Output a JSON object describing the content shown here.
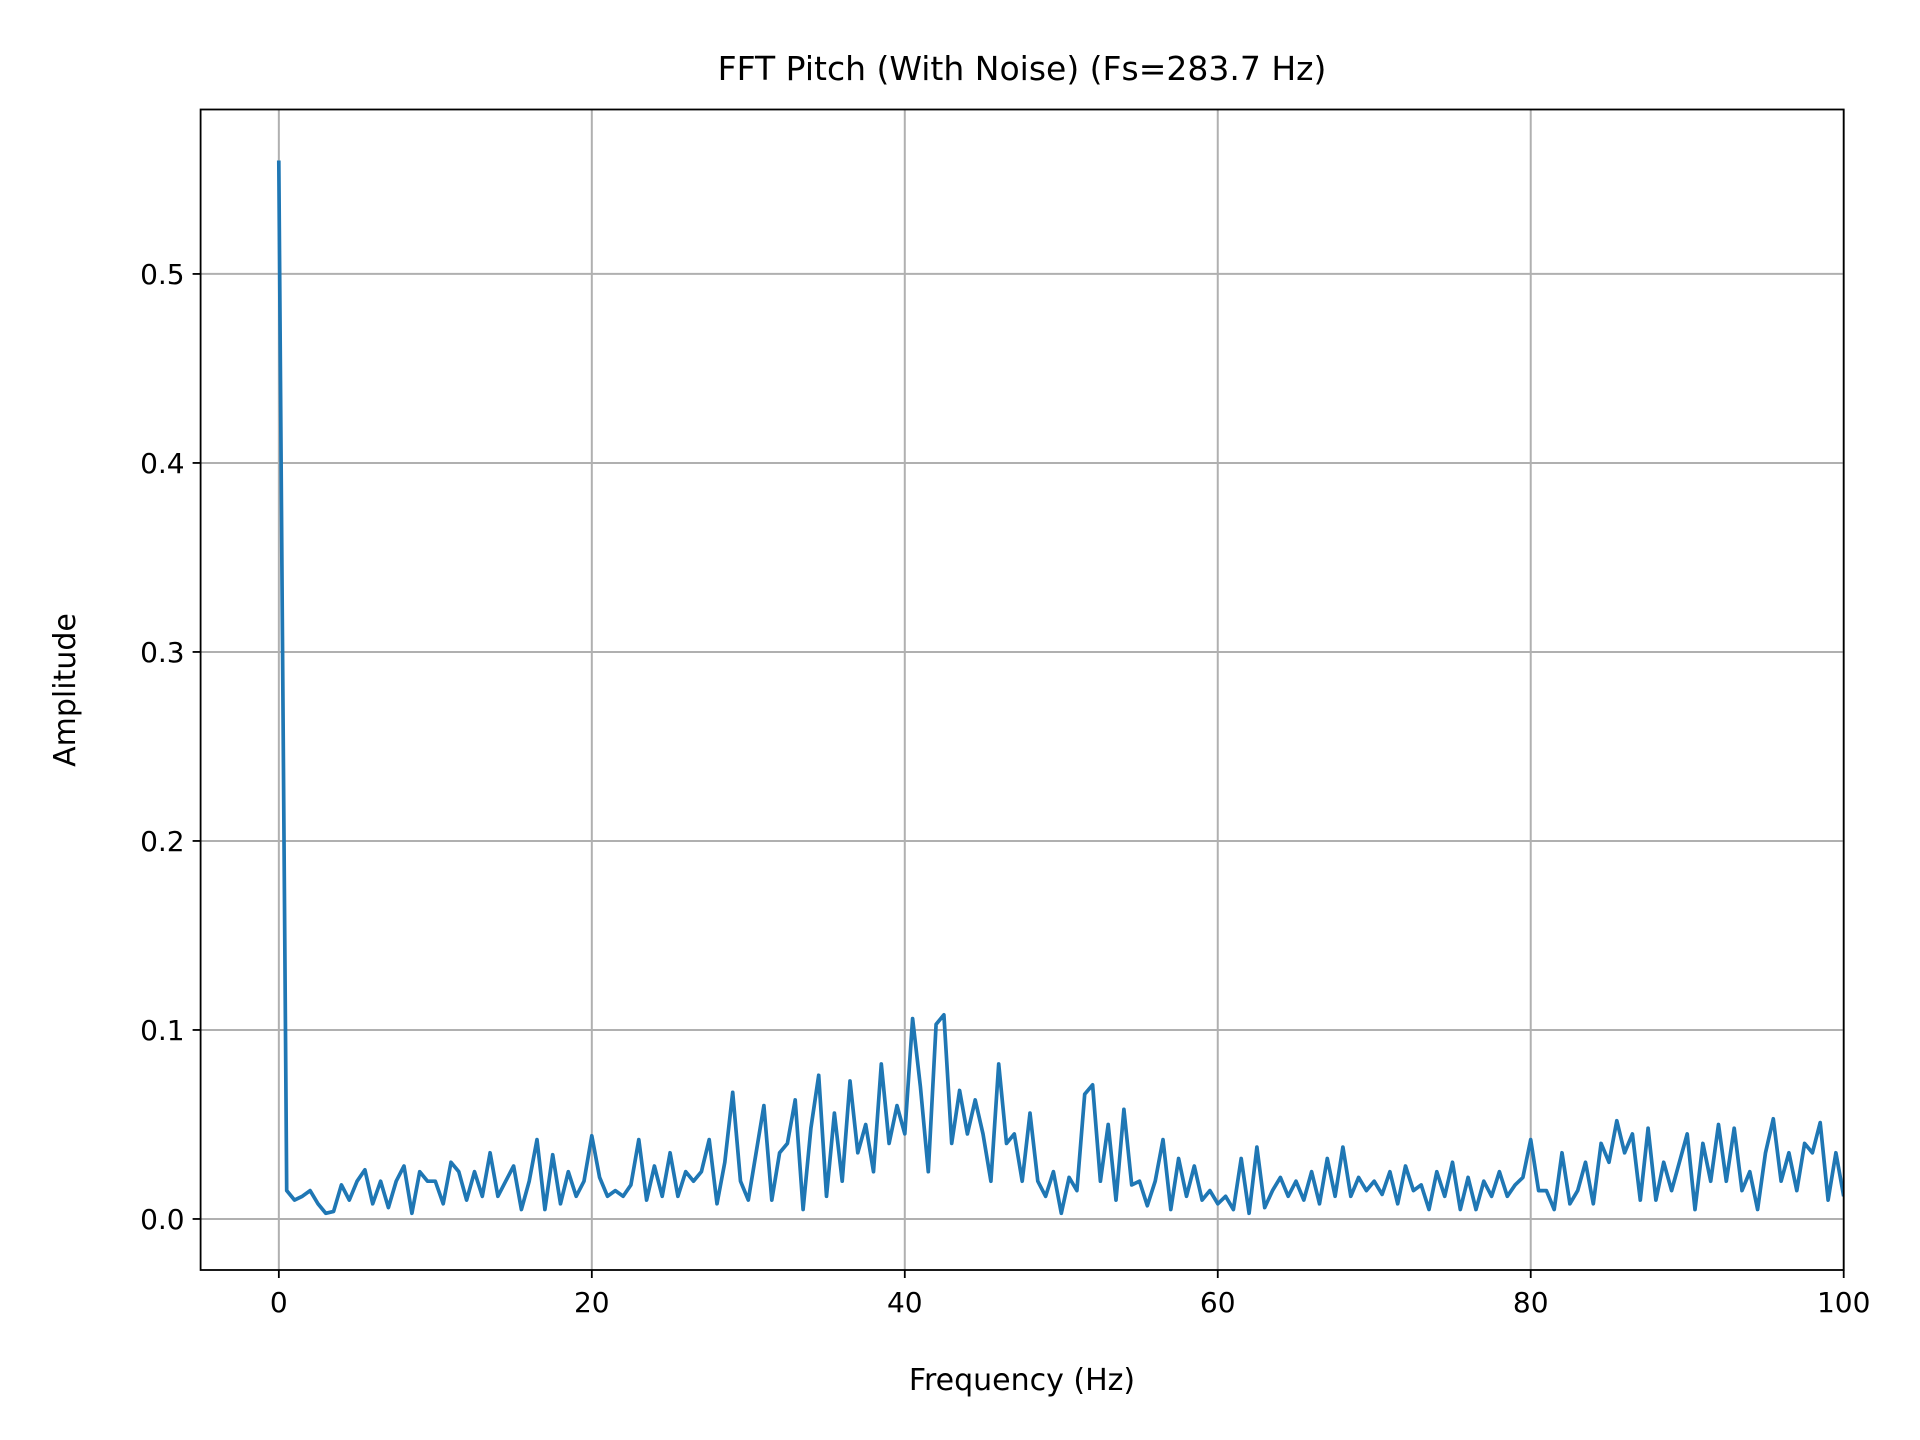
{
  "chart_data": {
    "type": "line",
    "title": "FFT Pitch (With Noise) (Fs=283.7 Hz)",
    "xlabel": "Frequency (Hz)",
    "ylabel": "Amplitude",
    "xlim": [
      -5,
      100
    ],
    "ylim": [
      -0.027,
      0.587
    ],
    "xticks": [
      0,
      20,
      40,
      60,
      80,
      100
    ],
    "xtick_labels": [
      "0",
      "20",
      "40",
      "60",
      "80",
      "100"
    ],
    "yticks": [
      0.0,
      0.1,
      0.2,
      0.3,
      0.4,
      0.5
    ],
    "ytick_labels": [
      "0.0",
      "0.1",
      "0.2",
      "0.3",
      "0.4",
      "0.5"
    ],
    "grid": true,
    "line_color": "#1f77b4",
    "series": [
      {
        "x": [
          0,
          0.5,
          1,
          1.5,
          2,
          2.5,
          3,
          3.5,
          4,
          4.5,
          5,
          5.5,
          6,
          6.5,
          7,
          7.5,
          8,
          8.5,
          9,
          9.5,
          10,
          10.5,
          11,
          11.5,
          12,
          12.5,
          13,
          13.5,
          14,
          14.5,
          15,
          15.5,
          16,
          16.5,
          17,
          17.5,
          18,
          18.5,
          19,
          19.5,
          20,
          20.5,
          21,
          21.5,
          22,
          22.5,
          23,
          23.5,
          24,
          24.5,
          25,
          25.5,
          26,
          26.5,
          27,
          27.5,
          28,
          28.5,
          29,
          29.5,
          30,
          30.5,
          31,
          31.5,
          32,
          32.5,
          33,
          33.5,
          34,
          34.5,
          35,
          35.5,
          36,
          36.5,
          37,
          37.5,
          38,
          38.5,
          39,
          39.5,
          40,
          40.5,
          41,
          41.5,
          42,
          42.5,
          43,
          43.5,
          44,
          44.5,
          45,
          45.5,
          46,
          46.5,
          47,
          47.5,
          48,
          48.5,
          49,
          49.5,
          50,
          50.5,
          51,
          51.5,
          52,
          52.5,
          53,
          53.5,
          54,
          54.5,
          55,
          55.5,
          56,
          56.5,
          57,
          57.5,
          58,
          58.5,
          59,
          59.5,
          60,
          60.5,
          61,
          61.5,
          62,
          62.5,
          63,
          63.5,
          64,
          64.5,
          65,
          65.5,
          66,
          66.5,
          67,
          67.5,
          68,
          68.5,
          69,
          69.5,
          70,
          70.5,
          71,
          71.5,
          72,
          72.5,
          73,
          73.5,
          74,
          74.5,
          75,
          75.5,
          76,
          76.5,
          77,
          77.5,
          78,
          78.5,
          79,
          79.5,
          80,
          80.5,
          81,
          81.5,
          82,
          82.5,
          83,
          83.5,
          84,
          84.5,
          85,
          85.5,
          86,
          86.5,
          87,
          87.5,
          88,
          88.5,
          89,
          89.5,
          90,
          90.5,
          91,
          91.5,
          92,
          92.5,
          93,
          93.5,
          94,
          94.5,
          95,
          95.5,
          96,
          96.5,
          97,
          97.5,
          98,
          98.5,
          99,
          99.5,
          100
        ],
        "y": [
          0.56,
          0.015,
          0.01,
          0.012,
          0.015,
          0.008,
          0.003,
          0.004,
          0.018,
          0.01,
          0.02,
          0.026,
          0.008,
          0.02,
          0.006,
          0.02,
          0.028,
          0.003,
          0.025,
          0.02,
          0.02,
          0.008,
          0.03,
          0.025,
          0.01,
          0.025,
          0.012,
          0.035,
          0.012,
          0.02,
          0.028,
          0.005,
          0.02,
          0.042,
          0.005,
          0.034,
          0.008,
          0.025,
          0.012,
          0.02,
          0.044,
          0.022,
          0.012,
          0.015,
          0.012,
          0.018,
          0.042,
          0.01,
          0.028,
          0.012,
          0.035,
          0.012,
          0.025,
          0.02,
          0.025,
          0.042,
          0.008,
          0.03,
          0.067,
          0.02,
          0.01,
          0.035,
          0.06,
          0.01,
          0.035,
          0.04,
          0.063,
          0.005,
          0.048,
          0.076,
          0.012,
          0.056,
          0.02,
          0.073,
          0.035,
          0.05,
          0.025,
          0.082,
          0.04,
          0.06,
          0.045,
          0.106,
          0.07,
          0.025,
          0.103,
          0.108,
          0.04,
          0.068,
          0.045,
          0.063,
          0.045,
          0.02,
          0.082,
          0.04,
          0.045,
          0.02,
          0.056,
          0.02,
          0.012,
          0.025,
          0.003,
          0.022,
          0.015,
          0.066,
          0.071,
          0.02,
          0.05,
          0.01,
          0.058,
          0.018,
          0.02,
          0.007,
          0.02,
          0.042,
          0.005,
          0.032,
          0.012,
          0.028,
          0.01,
          0.015,
          0.008,
          0.012,
          0.005,
          0.032,
          0.003,
          0.038,
          0.006,
          0.015,
          0.022,
          0.012,
          0.02,
          0.01,
          0.025,
          0.008,
          0.032,
          0.012,
          0.038,
          0.012,
          0.022,
          0.015,
          0.02,
          0.013,
          0.025,
          0.008,
          0.028,
          0.015,
          0.018,
          0.005,
          0.025,
          0.012,
          0.03,
          0.005,
          0.022,
          0.005,
          0.02,
          0.012,
          0.025,
          0.012,
          0.018,
          0.022,
          0.042,
          0.015,
          0.015,
          0.005,
          0.035,
          0.008,
          0.015,
          0.03,
          0.008,
          0.04,
          0.03,
          0.052,
          0.035,
          0.045,
          0.01,
          0.048,
          0.01,
          0.03,
          0.015,
          0.03,
          0.045,
          0.005,
          0.04,
          0.02,
          0.05,
          0.02,
          0.048,
          0.015,
          0.025,
          0.005,
          0.035,
          0.053,
          0.02,
          0.035,
          0.015,
          0.04,
          0.035,
          0.051,
          0.01,
          0.035,
          0.012
        ]
      }
    ]
  }
}
